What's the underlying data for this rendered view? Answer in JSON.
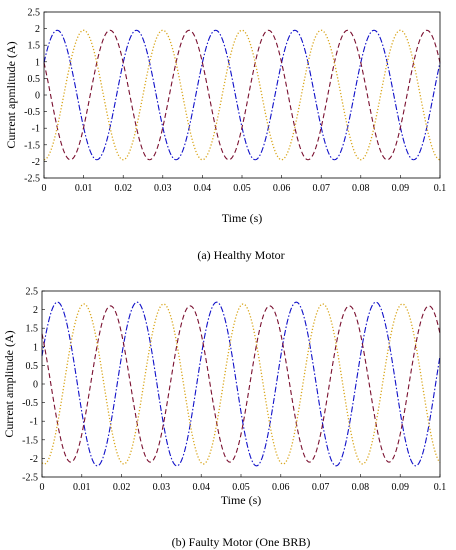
{
  "chart_data": [
    {
      "type": "line",
      "caption": "(a) Healthy Motor",
      "xlabel": "Time (s)",
      "ylabel": "Current apmlitude (A)",
      "xlim": [
        0,
        0.1
      ],
      "ylim": [
        -2.5,
        2.5
      ],
      "xticks": [
        "0",
        "0.01",
        "0.02",
        "0.03",
        "0.04",
        "0.05",
        "0.06",
        "0.07",
        "0.08",
        "0.09",
        "0.1"
      ],
      "yticks": [
        "2.5",
        "2",
        "1.5",
        "1",
        "0.5",
        "0",
        "-0.5",
        "-1",
        "-1.5",
        "-2",
        "-2.5"
      ],
      "grid": false,
      "frequency_hz": 50,
      "series": [
        {
          "amplitude": 1.95,
          "phase_deg": 30,
          "color": "#1010c8",
          "style": "dashdot"
        },
        {
          "amplitude": 1.95,
          "phase_deg": 150,
          "color": "#7a1030",
          "style": "dashed"
        },
        {
          "amplitude": 1.95,
          "phase_deg": -90,
          "color": "#d8a418",
          "style": "dotted"
        }
      ]
    },
    {
      "type": "line",
      "caption": "(b) Faulty Motor (One BRB)",
      "xlabel": "Time (s)",
      "ylabel": "Current amplitude (A)",
      "xlim": [
        0,
        0.1
      ],
      "ylim": [
        -2.5,
        2.5
      ],
      "xticks": [
        "0",
        "0.01",
        "0.02",
        "0.03",
        "0.04",
        "0.05",
        "0.06",
        "0.07",
        "0.08",
        "0.09",
        "0.1"
      ],
      "yticks": [
        "2.5",
        "2",
        "1.5",
        "1",
        "0.5",
        "0",
        "-0.5",
        "-1",
        "-1.5",
        "-2",
        "-2.5"
      ],
      "grid": false,
      "frequency_hz": 50,
      "series": [
        {
          "amplitude": 2.2,
          "phase_deg": 20,
          "color": "#1010c8",
          "style": "dashdot"
        },
        {
          "amplitude": 2.1,
          "phase_deg": 140,
          "color": "#7a1030",
          "style": "dashed"
        },
        {
          "amplitude": 2.15,
          "phase_deg": -100,
          "color": "#d8a418",
          "style": "dotted"
        }
      ]
    }
  ]
}
